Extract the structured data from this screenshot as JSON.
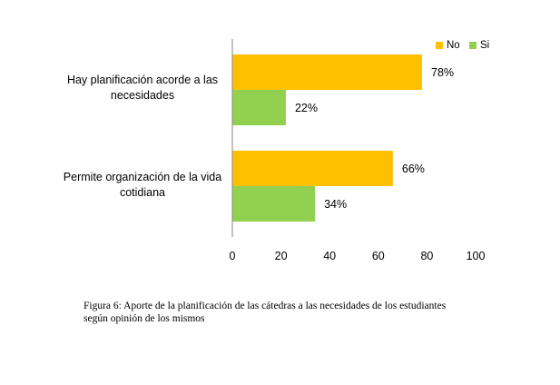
{
  "chart_data": {
    "type": "bar",
    "orientation": "horizontal",
    "categories": [
      "Hay planificación acorde a  las necesidades",
      "Permite organización de la vida cotidiana"
    ],
    "series": [
      {
        "name": "No",
        "values": [
          78,
          66
        ],
        "labels": [
          "78%",
          "66%"
        ],
        "color": "#FFC000"
      },
      {
        "name": "Si",
        "values": [
          22,
          34
        ],
        "labels": [
          "22%",
          "34%"
        ],
        "color": "#92D050"
      }
    ],
    "xlim": [
      0,
      100
    ],
    "xticks": [
      "0",
      "20",
      "40",
      "60",
      "80",
      "100"
    ],
    "legend": "top-right",
    "grid": false
  },
  "caption": {
    "line1": "Figura 6: Aporte de la planificación de las cátedras a las necesidades de los estudiantes",
    "line2": "según opinión de los mismos"
  }
}
